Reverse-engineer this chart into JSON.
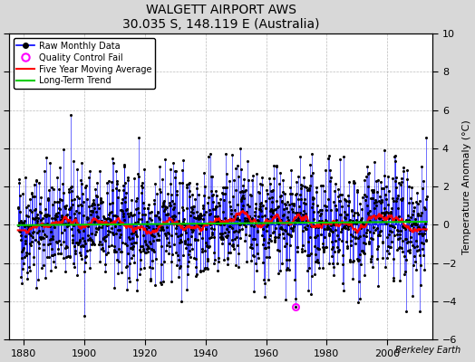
{
  "title": "WALGETT AIRPORT AWS",
  "subtitle": "30.035 S, 148.119 E (Australia)",
  "ylabel": "Temperature Anomaly (°C)",
  "ylim": [
    -6,
    10
  ],
  "xlim": [
    1875,
    2015
  ],
  "xticks": [
    1880,
    1900,
    1920,
    1940,
    1960,
    1980,
    2000
  ],
  "yticks": [
    -6,
    -4,
    -2,
    0,
    2,
    4,
    6,
    8,
    10
  ],
  "start_year": 1878,
  "end_year": 2013,
  "background_color": "#d8d8d8",
  "plot_background": "#ffffff",
  "raw_color": "#0000ff",
  "moving_avg_color": "#ff0000",
  "trend_color": "#00cc00",
  "qc_fail_color": "#ff00ff",
  "dot_color": "#000000",
  "figsize": [
    5.24,
    4.0
  ],
  "dpi": 100,
  "qc_fail_year": 1969,
  "qc_fail_month": 6,
  "qc_fail_value": -4.3,
  "watermark": "Berkeley Earth"
}
